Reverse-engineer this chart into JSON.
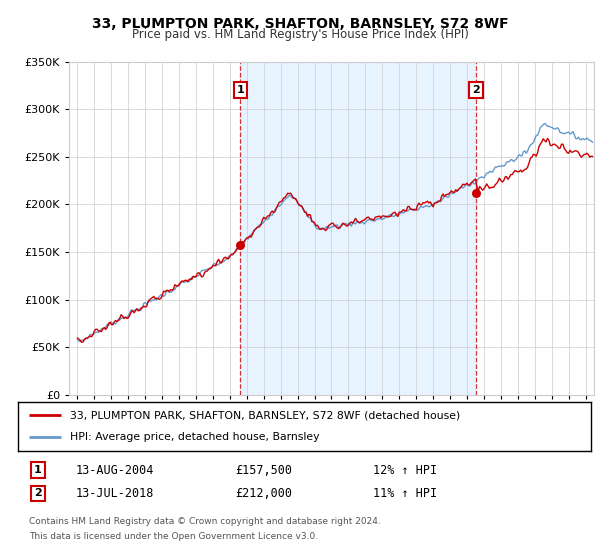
{
  "title": "33, PLUMPTON PARK, SHAFTON, BARNSLEY, S72 8WF",
  "subtitle": "Price paid vs. HM Land Registry's House Price Index (HPI)",
  "legend_red": "33, PLUMPTON PARK, SHAFTON, BARNSLEY, S72 8WF (detached house)",
  "legend_blue": "HPI: Average price, detached house, Barnsley",
  "sale1_date": "13-AUG-2004",
  "sale1_price": "£157,500",
  "sale1_hpi": "12% ↑ HPI",
  "sale1_year": 2004.62,
  "sale1_value": 157500,
  "sale2_date": "13-JUL-2018",
  "sale2_price": "£212,000",
  "sale2_hpi": "11% ↑ HPI",
  "sale2_year": 2018.535,
  "sale2_value": 212000,
  "footnote": "Contains HM Land Registry data © Crown copyright and database right 2024.\nThis data is licensed under the Open Government Licence v3.0.",
  "red_color": "#cc0000",
  "blue_color": "#6699cc",
  "fill_color": "#ddeeff",
  "ylim": [
    0,
    350000
  ],
  "background_color": "#ffffff"
}
